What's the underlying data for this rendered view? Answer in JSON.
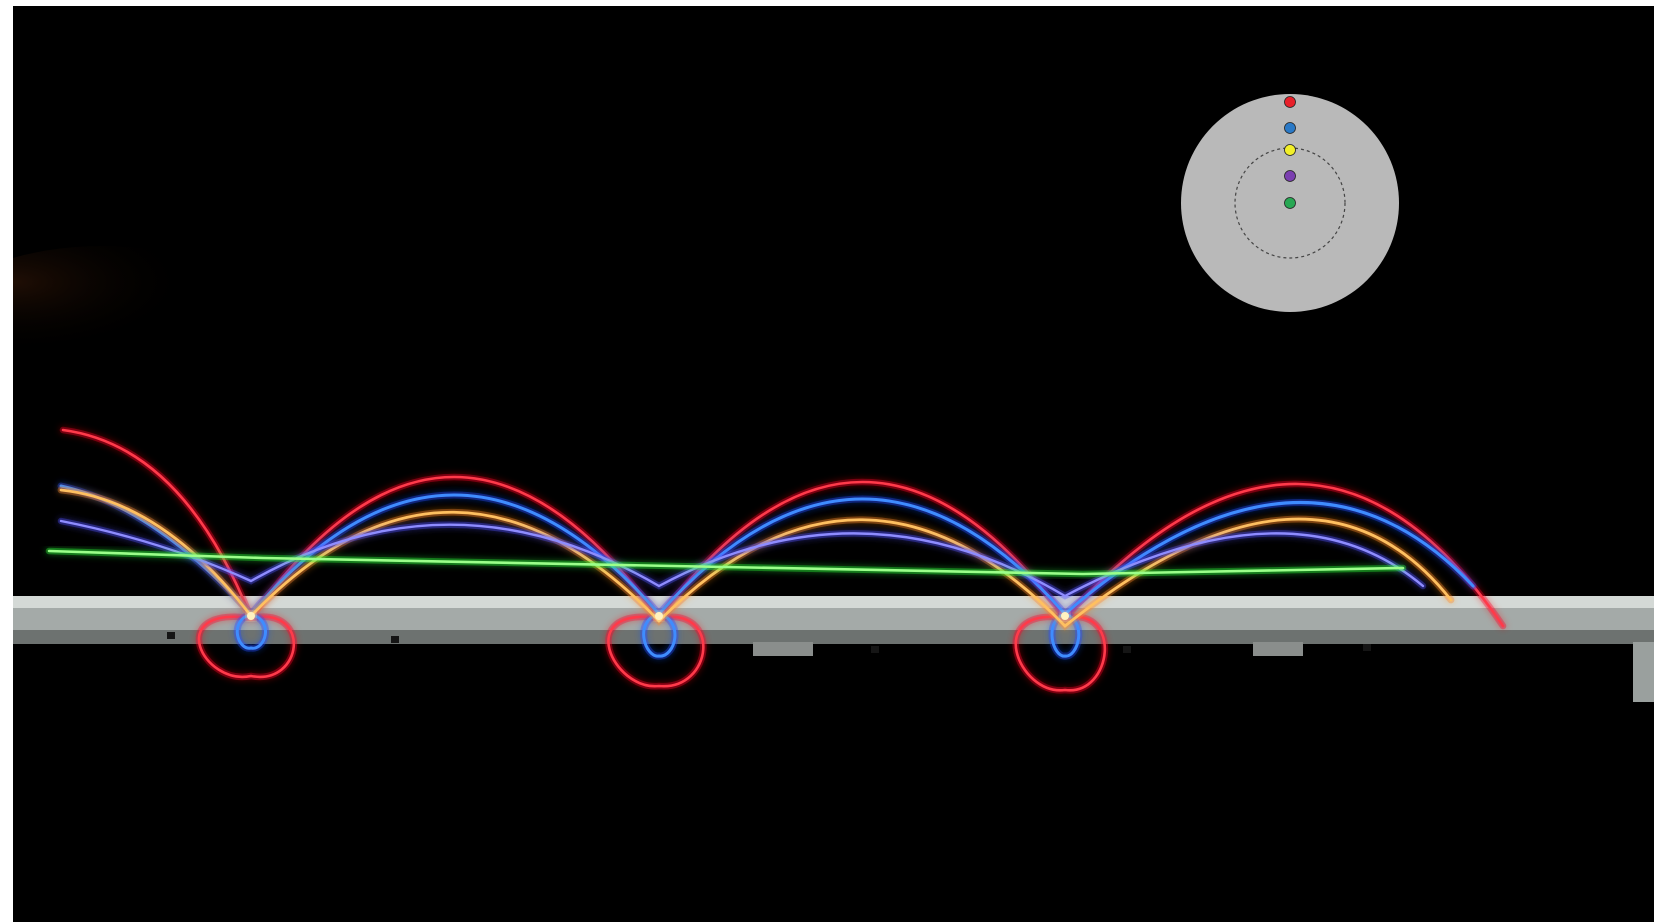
{
  "scene": {
    "background_color": "#000000",
    "frame_color": "#ffffff"
  },
  "inset_disk": {
    "disk_color": "#b9b9b9",
    "dashed_circle_color": "#444444",
    "markers": [
      {
        "name": "red",
        "color": "#e8202a"
      },
      {
        "name": "blue",
        "color": "#2a79c6"
      },
      {
        "name": "yellow",
        "color": "#f2ef2a"
      },
      {
        "name": "purple",
        "color": "#7b3fb0"
      },
      {
        "name": "green",
        "color": "#27a753"
      }
    ]
  },
  "trails": [
    {
      "name": "red",
      "color": "#ff3a4a",
      "glow": "#ff0020"
    },
    {
      "name": "blue",
      "color": "#3f8cff",
      "glow": "#1a4cff"
    },
    {
      "name": "yellow",
      "color": "#ffc060",
      "glow": "#ff8a20"
    },
    {
      "name": "purple",
      "color": "#8e8cff",
      "glow": "#5050ff"
    },
    {
      "name": "green",
      "color": "#9bff8a",
      "glow": "#2aff3a"
    }
  ],
  "rail": {
    "color": "#b6bbb8"
  }
}
